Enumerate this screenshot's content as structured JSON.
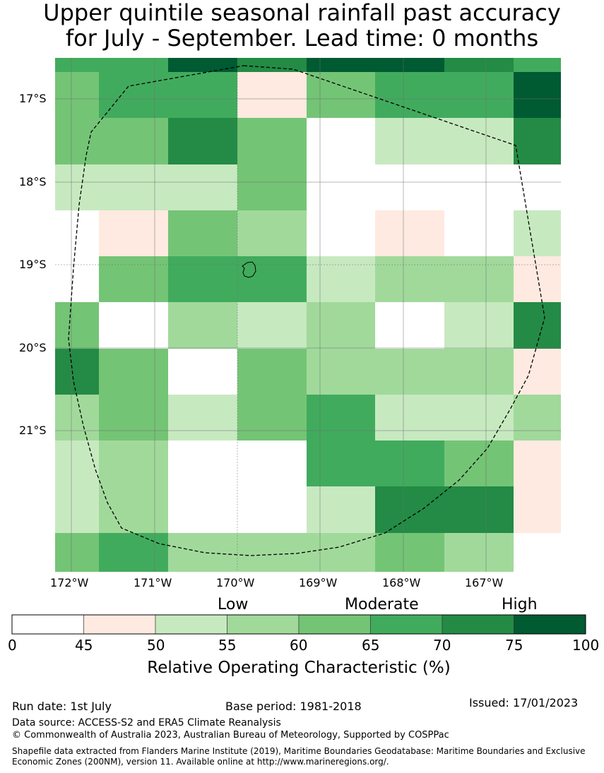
{
  "title": {
    "line1": "Upper quintile seasonal rainfall past accuracy",
    "line2": "for July - September. Lead time: 0 months"
  },
  "map": {
    "lat_labels": [
      "17°S",
      "18°S",
      "19°S",
      "20°S",
      "21°S"
    ],
    "lon_labels": [
      "172°W",
      "171°W",
      "170°W",
      "169°W",
      "168°W",
      "167°W"
    ],
    "grid_value_bins": "index into colorbar.bins (0=0-45, 1=45-50, 2=50-55, 3=55-60, 4=60-65, 5=65-70, 6=70-75, 7=75-100, -1=no data)",
    "cells": [
      [
        5,
        5,
        7,
        6,
        7,
        7,
        6,
        5
      ],
      [
        4,
        5,
        5,
        1,
        4,
        5,
        5,
        7
      ],
      [
        4,
        4,
        6,
        4,
        0,
        2,
        2,
        6
      ],
      [
        2,
        2,
        2,
        4,
        0,
        0,
        0,
        0
      ],
      [
        0,
        1,
        4,
        3,
        0,
        1,
        0,
        2
      ],
      [
        0,
        4,
        5,
        5,
        2,
        3,
        3,
        1
      ],
      [
        4,
        0,
        3,
        2,
        3,
        0,
        2,
        6
      ],
      [
        6,
        4,
        0,
        4,
        3,
        3,
        3,
        1
      ],
      [
        3,
        4,
        2,
        4,
        5,
        2,
        2,
        3
      ],
      [
        2,
        3,
        0,
        0,
        5,
        5,
        4,
        1
      ],
      [
        2,
        3,
        0,
        0,
        2,
        6,
        6,
        1
      ],
      [
        4,
        5,
        3,
        3,
        3,
        4,
        3,
        -1
      ]
    ]
  },
  "colorbar": {
    "categories": [
      "Low",
      "Moderate",
      "High"
    ],
    "ticks": [
      "0",
      "45",
      "50",
      "55",
      "60",
      "65",
      "70",
      "75",
      "100"
    ],
    "bins": [
      {
        "range": "0-45",
        "color": "#ffffff"
      },
      {
        "range": "45-50",
        "color": "#feeae0"
      },
      {
        "range": "50-55",
        "color": "#c7e9c0"
      },
      {
        "range": "55-60",
        "color": "#a1d99b"
      },
      {
        "range": "60-65",
        "color": "#74c476"
      },
      {
        "range": "65-70",
        "color": "#41ab5d"
      },
      {
        "range": "70-75",
        "color": "#238b45"
      },
      {
        "range": "75-100",
        "color": "#005a32"
      }
    ],
    "title": "Relative Operating Characteristic (%)"
  },
  "footer": {
    "run_date": "Run date: 1st July",
    "base_period": "Base period: 1981-2018",
    "issued": "Issued: 17/01/2023",
    "data_source": "Data source: ACCESS-S2 and ERA5 Climate Reanalysis",
    "copyright": "© Commonwealth of Australia 2023, Australian Bureau of Meteorology, Supported by COSPPac",
    "shapefile": "Shapefile data extracted from Flanders Marine Institute (2019), Maritime Boundaries Geodatabase: Maritime Boundaries and Exclusive Economic Zones (200NM), version 11. Available online at http://www.marineregions.org/."
  }
}
